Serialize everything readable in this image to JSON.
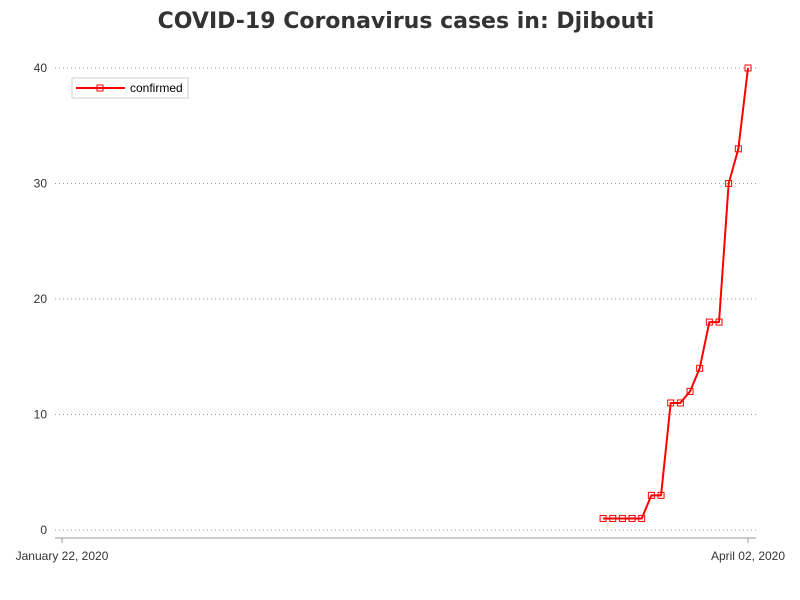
{
  "chart_data": {
    "type": "line",
    "title": "COVID-19 Coronavirus cases in: Djibouti",
    "xlabel": "",
    "ylabel": "",
    "x_tick_labels": [
      "January 22, 2020",
      "April 02, 2020"
    ],
    "x_range": [
      "2020-01-22",
      "2020-04-02"
    ],
    "ylim": [
      0,
      40
    ],
    "y_ticks": [
      0,
      10,
      20,
      30,
      40
    ],
    "grid": "horizontal-dotted",
    "legend_position": "top-left",
    "series": [
      {
        "name": "confirmed",
        "color": "#ff0000",
        "marker": "square",
        "points": [
          {
            "x": "2020-03-18",
            "y": 1
          },
          {
            "x": "2020-03-19",
            "y": 1
          },
          {
            "x": "2020-03-20",
            "y": 1
          },
          {
            "x": "2020-03-21",
            "y": 1
          },
          {
            "x": "2020-03-22",
            "y": 1
          },
          {
            "x": "2020-03-23",
            "y": 3
          },
          {
            "x": "2020-03-24",
            "y": 3
          },
          {
            "x": "2020-03-25",
            "y": 11
          },
          {
            "x": "2020-03-26",
            "y": 11
          },
          {
            "x": "2020-03-27",
            "y": 12
          },
          {
            "x": "2020-03-28",
            "y": 14
          },
          {
            "x": "2020-03-29",
            "y": 18
          },
          {
            "x": "2020-03-30",
            "y": 18
          },
          {
            "x": "2020-03-31",
            "y": 30
          },
          {
            "x": "2020-04-01",
            "y": 33
          },
          {
            "x": "2020-04-02",
            "y": 40
          }
        ]
      }
    ]
  }
}
